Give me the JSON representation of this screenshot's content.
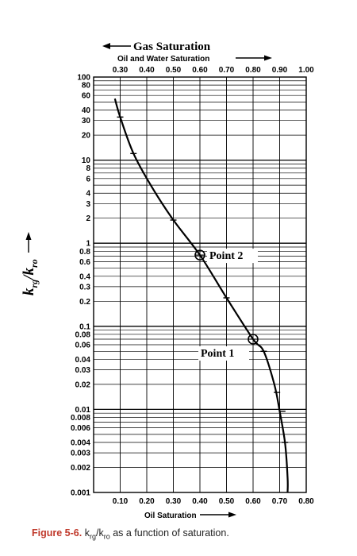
{
  "chart_data": {
    "type": "line",
    "title": "Gas Saturation",
    "top_axis_label": "Oil and Water Saturation",
    "xlabel": "Oil Saturation",
    "ylabel": "k_rg/k_ro",
    "y_scale": "log",
    "ylim": [
      0.001,
      100
    ],
    "xlim": [
      0.0,
      0.8
    ],
    "top_xlim": [
      0.2,
      1.0
    ],
    "grid": true,
    "bottom_ticks": [
      "0.10",
      "0.20",
      "0.30",
      "0.40",
      "0.50",
      "0.60",
      "0.70",
      "0.80"
    ],
    "top_ticks": [
      "0.30",
      "0.40",
      "0.50",
      "0.60",
      "0.70",
      "0.80",
      "0.90",
      "1.00"
    ],
    "y_ticks": [
      "0.001",
      "0.002",
      "0.003",
      "0.004",
      "0.006",
      "0.008",
      "0.01",
      "0.02",
      "0.03",
      "0.04",
      "0.06",
      "0.08",
      "0.1",
      "0.2",
      "0.3",
      "0.4",
      "0.6",
      "0.8",
      "1",
      "2",
      "3",
      "4",
      "6",
      "8",
      "10",
      "20",
      "30",
      "40",
      "60",
      "80",
      "100"
    ],
    "series": [
      {
        "x": [
          0.08,
          0.1,
          0.15,
          0.22,
          0.3,
          0.4,
          0.5,
          0.6,
          0.64,
          0.68,
          0.7,
          0.72,
          0.73,
          0.73
        ],
        "y": [
          55,
          33,
          12,
          4.7,
          1.9,
          0.72,
          0.22,
          0.07,
          0.05,
          0.02,
          0.0095,
          0.004,
          0.0015,
          0.001
        ]
      }
    ],
    "markers": [
      {
        "x": 0.1,
        "y": 33
      },
      {
        "x": 0.15,
        "y": 12
      },
      {
        "x": 0.3,
        "y": 1.9
      },
      {
        "x": 0.5,
        "y": 0.22
      },
      {
        "x": 0.64,
        "y": 0.05
      },
      {
        "x": 0.69,
        "y": 0.016
      },
      {
        "x": 0.71,
        "y": 0.0095
      },
      {
        "x": 0.72,
        "y": 0.004
      }
    ],
    "annotations": [
      {
        "label": "Point 2",
        "x": 0.4,
        "y": 0.72
      },
      {
        "label": "Point 1",
        "x": 0.6,
        "y": 0.07
      }
    ]
  },
  "caption": {
    "figure_label": "Figure 5-6.",
    "text": "k_rg/k_ro as a function of saturation."
  }
}
